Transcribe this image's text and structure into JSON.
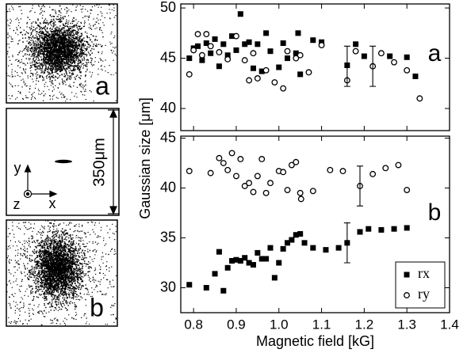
{
  "images": {
    "panel_a_label": "a",
    "panel_b_label": "b",
    "scale_label": "350μm",
    "axis_y": "y",
    "axis_z": "z",
    "axis_x": "x"
  },
  "chart_data": [
    {
      "type": "scatter",
      "panel_label": "a",
      "xlim": [
        0.77,
        1.4
      ],
      "xticks": [
        0.8,
        0.9,
        1.0,
        1.1,
        1.2,
        1.3,
        1.4
      ],
      "ylim": [
        37.8,
        50.4
      ],
      "yticks": [
        40,
        45,
        50
      ],
      "series": [
        {
          "name": "rx",
          "marker": "square",
          "color": "#000000",
          "x": [
            0.79,
            0.8,
            0.81,
            0.82,
            0.83,
            0.84,
            0.85,
            0.86,
            0.87,
            0.88,
            0.89,
            0.9,
            0.91,
            0.92,
            0.93,
            0.94,
            0.95,
            0.96,
            0.97,
            0.98,
            1.0,
            1.01,
            1.02,
            1.04,
            1.045,
            1.05,
            1.08,
            1.1,
            1.16,
            1.18,
            1.2,
            1.26,
            1.3,
            1.32
          ],
          "values": [
            45.0,
            46.0,
            46.2,
            44.8,
            46.5,
            45.5,
            46.9,
            44.2,
            46.4,
            45.3,
            47.2,
            45.8,
            49.4,
            46.4,
            46.6,
            44.0,
            46.4,
            43.7,
            47.5,
            45.7,
            44.1,
            46.5,
            45.0,
            45.5,
            47.5,
            43.4,
            46.8,
            46.6,
            44.3,
            46.4,
            45.2,
            45.2,
            45.1,
            43.2
          ]
        },
        {
          "name": "ry",
          "marker": "circle",
          "color": "#000000",
          "x": [
            0.79,
            0.8,
            0.81,
            0.82,
            0.83,
            0.84,
            0.86,
            0.88,
            0.9,
            0.92,
            0.93,
            0.94,
            0.95,
            0.97,
            0.99,
            1.01,
            1.02,
            1.04,
            1.05,
            1.07,
            1.1,
            1.16,
            1.18,
            1.22,
            1.24,
            1.27,
            1.3,
            1.33
          ],
          "values": [
            43.4,
            45.8,
            47.4,
            45.3,
            47.4,
            46.2,
            45.6,
            44.9,
            47.2,
            44.8,
            42.8,
            45.5,
            43.0,
            43.8,
            42.6,
            42.0,
            45.7,
            45.0,
            45.3,
            43.6,
            46.3,
            42.8,
            45.7,
            44.2,
            45.5,
            44.6,
            43.8,
            41.0
          ]
        }
      ],
      "error_bars": [
        {
          "x": 1.16,
          "y": 44.2,
          "error": 2.0
        },
        {
          "x": 1.22,
          "y": 44.2,
          "error": 2.0
        }
      ]
    },
    {
      "type": "scatter",
      "panel_label": "b",
      "x_label": "Magnetic field [kG]",
      "y_label": "Gaussian size [μm]",
      "legend": "lower right",
      "xlim": [
        0.77,
        1.4
      ],
      "xticks": [
        0.8,
        0.9,
        {
          "value": 1,
          "label": "1.0"
        },
        1.1,
        1.2,
        1.3,
        1.4
      ],
      "ylim": [
        27.5,
        45.2
      ],
      "yticks": [
        30,
        35,
        40,
        45
      ],
      "series": [
        {
          "name": "rx",
          "marker": "square",
          "color": "#000000",
          "x": [
            0.79,
            0.83,
            0.85,
            0.86,
            0.87,
            0.88,
            0.89,
            0.9,
            0.91,
            0.92,
            0.93,
            0.94,
            0.95,
            0.96,
            0.97,
            0.98,
            0.99,
            1.0,
            1.01,
            1.02,
            1.03,
            1.04,
            1.05,
            1.06,
            1.08,
            1.11,
            1.14,
            1.16,
            1.19,
            1.21,
            1.24,
            1.27,
            1.3
          ],
          "values": [
            30.3,
            30.0,
            31.4,
            33.6,
            29.7,
            32.0,
            32.7,
            32.8,
            32.7,
            33.0,
            32.5,
            32.3,
            33.5,
            32.9,
            32.9,
            34.0,
            31.0,
            32.5,
            33.9,
            34.5,
            34.8,
            35.3,
            35.4,
            34.5,
            34.0,
            33.8,
            34.0,
            34.5,
            35.6,
            35.9,
            35.8,
            35.9,
            36.0
          ]
        },
        {
          "name": "ry",
          "marker": "circle",
          "color": "#000000",
          "x": [
            0.79,
            0.84,
            0.86,
            0.87,
            0.88,
            0.89,
            0.9,
            0.91,
            0.92,
            0.93,
            0.94,
            0.95,
            0.96,
            0.97,
            0.98,
            1.0,
            1.01,
            1.02,
            1.03,
            1.04,
            1.05,
            1.052,
            1.08,
            1.12,
            1.15,
            1.19,
            1.22,
            1.25,
            1.28,
            1.3
          ],
          "values": [
            41.7,
            41.5,
            43.0,
            42.5,
            41.8,
            43.5,
            41.2,
            42.9,
            40.2,
            40.5,
            39.6,
            41.2,
            42.9,
            39.5,
            40.5,
            41.7,
            41.6,
            39.8,
            42.3,
            42.6,
            39.5,
            38.9,
            39.7,
            41.8,
            41.7,
            40.2,
            41.4,
            42.0,
            42.3,
            39.8
          ]
        }
      ],
      "error_bars": [
        {
          "x": 1.16,
          "y": 34.5,
          "error": 2.0
        },
        {
          "x": 1.19,
          "y": 40.2,
          "error": 2.0
        }
      ]
    }
  ]
}
